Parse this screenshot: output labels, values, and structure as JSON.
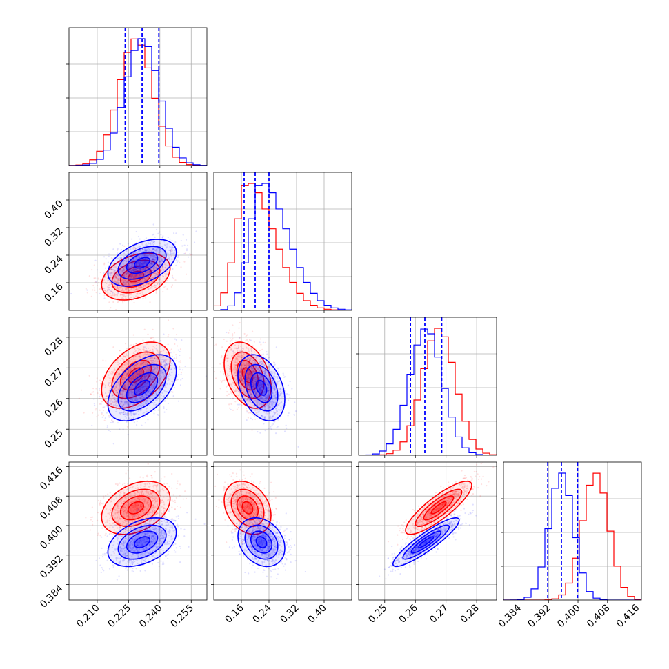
{
  "colors": {
    "red": "#ff0000",
    "blue": "#0000ff"
  },
  "chart_data": {
    "type": "scatter",
    "ticks": [
      [
        "0.210",
        "0.225",
        "0.240",
        "0.255"
      ],
      [
        "0.16",
        "0.24",
        "0.32",
        "0.40"
      ],
      [
        "0.25",
        "0.26",
        "0.27",
        "0.28"
      ],
      [
        "0.384",
        "0.392",
        "0.400",
        "0.408",
        "0.416"
      ]
    ],
    "ranges": [
      [
        0.1965,
        0.2625
      ],
      [
        0.08,
        0.48
      ],
      [
        0.2415,
        0.2865
      ],
      [
        0.3798,
        0.4172
      ]
    ],
    "grid": true,
    "series": [
      {
        "color": "red",
        "mean": [
          0.2285,
          0.178,
          0.2676,
          0.4048
        ],
        "sd": [
          0.0082,
          0.034,
          0.0054,
          0.0036
        ],
        "corr": {
          "0-1": 0.35,
          "0-2": 0.45,
          "0-3": 0.35,
          "1-2": -0.35,
          "1-3": -0.28,
          "2-3": 0.85
        }
      },
      {
        "color": "blue",
        "mean": [
          0.2315,
          0.218,
          0.2635,
          0.3955
        ],
        "sd": [
          0.0082,
          0.034,
          0.0054,
          0.0033
        ],
        "corr": {
          "0-1": 0.45,
          "0-2": 0.5,
          "0-3": 0.4,
          "1-2": -0.35,
          "1-3": -0.25,
          "2-3": 0.9
        }
      }
    ],
    "quantile_lines": {
      "color": "blue",
      "values": [
        [
          0.2234,
          0.2315,
          0.2395
        ],
        [
          0.168,
          0.2,
          0.24
        ],
        [
          0.2584,
          0.2631,
          0.2686
        ],
        [
          0.3918,
          0.3955,
          0.3999
        ]
      ]
    }
  }
}
